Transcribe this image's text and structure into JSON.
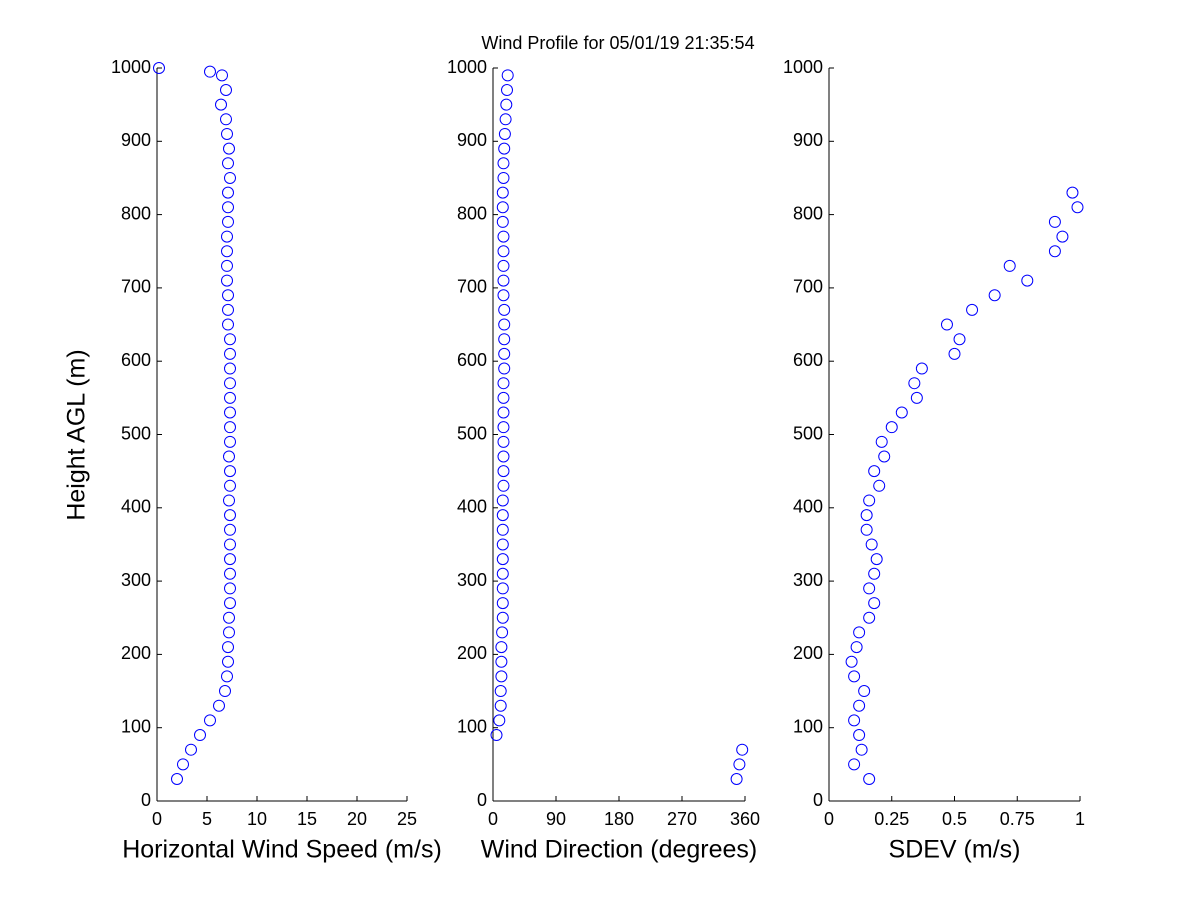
{
  "chart_data": [
    {
      "type": "scatter",
      "title": "Wind Profile for  05/01/19 21:35:54",
      "xlabel": "Horizontal Wind Speed (m/s)",
      "ylabel": "Height AGL (m)",
      "color": "#0000ff",
      "x": [
        2.0,
        2.6,
        3.4,
        4.3,
        5.3,
        6.2,
        6.8,
        7.0,
        7.1,
        7.1,
        7.2,
        7.2,
        7.3,
        7.3,
        7.3,
        7.3,
        7.3,
        7.3,
        7.3,
        7.2,
        7.3,
        7.3,
        7.2,
        7.3,
        7.3,
        7.3,
        7.3,
        7.3,
        7.3,
        7.3,
        7.3,
        7.1,
        7.1,
        7.1,
        7.0,
        7.0,
        7.0,
        7.0,
        7.1,
        7.1,
        7.1,
        7.3,
        7.1,
        7.2,
        7.0,
        6.9,
        6.4,
        6.9,
        6.5,
        5.3,
        0.2
      ],
      "y": [
        30,
        50,
        70,
        90,
        110,
        130,
        150,
        170,
        190,
        210,
        230,
        250,
        270,
        290,
        310,
        330,
        350,
        370,
        390,
        410,
        430,
        450,
        470,
        490,
        510,
        530,
        550,
        570,
        590,
        610,
        630,
        650,
        670,
        690,
        710,
        730,
        750,
        770,
        790,
        810,
        830,
        850,
        870,
        890,
        910,
        930,
        950,
        970,
        990,
        995,
        1000
      ],
      "xlim": [
        0,
        25
      ],
      "xticks": [
        0,
        5,
        10,
        15,
        20,
        25
      ],
      "ylim": [
        0,
        1000
      ],
      "yticks": [
        0,
        100,
        200,
        300,
        400,
        500,
        600,
        700,
        800,
        900,
        1000
      ]
    },
    {
      "type": "scatter",
      "xlabel": "Wind Direction (degrees)",
      "color": "#0000ff",
      "x": [
        348,
        352,
        356,
        5,
        9,
        11,
        11,
        12,
        12,
        12,
        13,
        14,
        14,
        14,
        14,
        14,
        14,
        14,
        14,
        14,
        15,
        15,
        15,
        15,
        15,
        15,
        15,
        15,
        16,
        16,
        16,
        16,
        16,
        15,
        15,
        15,
        15,
        15,
        14,
        14,
        14,
        15,
        15,
        16,
        17,
        18,
        19,
        20,
        21
      ],
      "y": [
        30,
        50,
        70,
        90,
        110,
        130,
        150,
        170,
        190,
        210,
        230,
        250,
        270,
        290,
        310,
        330,
        350,
        370,
        390,
        410,
        430,
        450,
        470,
        490,
        510,
        530,
        550,
        570,
        590,
        610,
        630,
        650,
        670,
        690,
        710,
        730,
        750,
        770,
        790,
        810,
        830,
        850,
        870,
        890,
        910,
        930,
        950,
        970,
        990
      ],
      "xlim": [
        0,
        360
      ],
      "xticks": [
        0,
        90,
        180,
        270,
        360
      ],
      "ylim": [
        0,
        1000
      ],
      "yticks": [
        0,
        100,
        200,
        300,
        400,
        500,
        600,
        700,
        800,
        900,
        1000
      ]
    },
    {
      "type": "scatter",
      "xlabel": "SDEV  (m/s)",
      "color": "#0000ff",
      "x": [
        0.16,
        0.1,
        0.13,
        0.12,
        0.1,
        0.12,
        0.14,
        0.1,
        0.09,
        0.11,
        0.12,
        0.16,
        0.18,
        0.16,
        0.18,
        0.19,
        0.17,
        0.15,
        0.15,
        0.16,
        0.2,
        0.18,
        0.22,
        0.21,
        0.25,
        0.29,
        0.35,
        0.34,
        0.37,
        0.5,
        0.52,
        0.47,
        0.57,
        0.66,
        0.79,
        0.72,
        0.9,
        0.93,
        0.9,
        0.99,
        0.97
      ],
      "y": [
        30,
        50,
        70,
        90,
        110,
        130,
        150,
        170,
        190,
        210,
        230,
        250,
        270,
        290,
        310,
        330,
        350,
        370,
        390,
        410,
        430,
        450,
        470,
        490,
        510,
        530,
        550,
        570,
        590,
        610,
        630,
        650,
        670,
        690,
        710,
        730,
        750,
        770,
        790,
        810,
        830
      ],
      "xlim": [
        0,
        1
      ],
      "xticks": [
        0,
        0.25,
        0.5,
        0.75,
        1
      ],
      "ylim": [
        0,
        1000
      ],
      "yticks": [
        0,
        100,
        200,
        300,
        400,
        500,
        600,
        700,
        800,
        900,
        1000
      ]
    }
  ]
}
